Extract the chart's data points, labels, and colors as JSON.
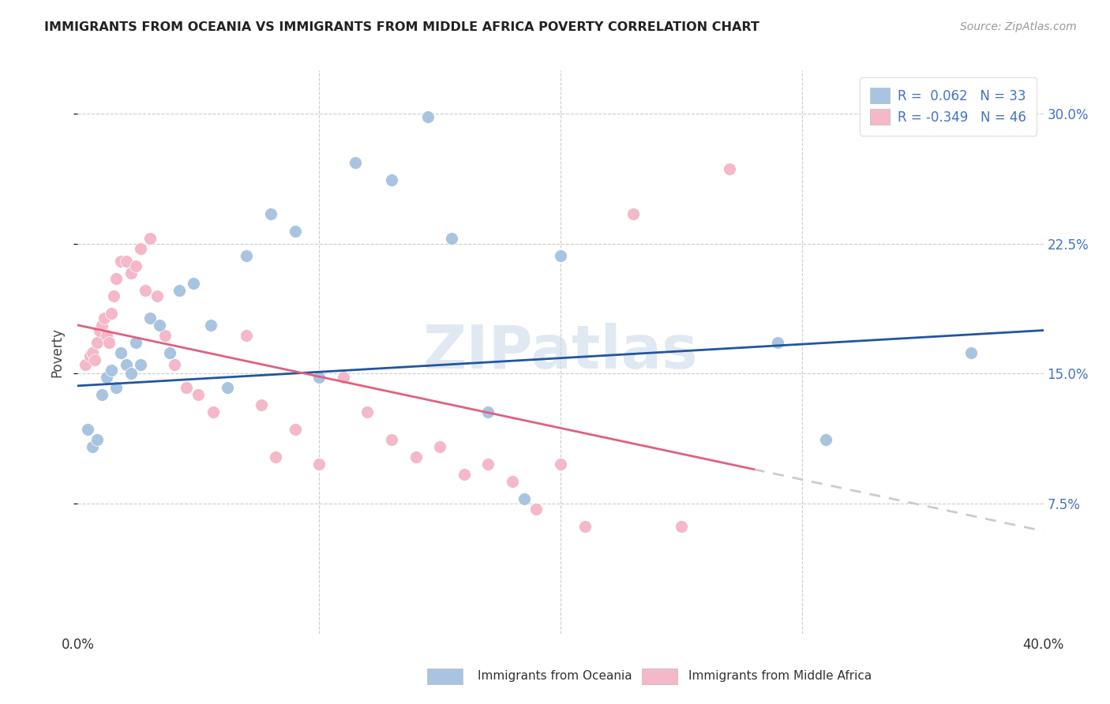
{
  "title": "IMMIGRANTS FROM OCEANIA VS IMMIGRANTS FROM MIDDLE AFRICA POVERTY CORRELATION CHART",
  "source": "Source: ZipAtlas.com",
  "ylabel": "Poverty",
  "ytick_labels": [
    "7.5%",
    "15.0%",
    "22.5%",
    "30.0%"
  ],
  "ytick_values": [
    0.075,
    0.15,
    0.225,
    0.3
  ],
  "xlim": [
    0.0,
    0.4
  ],
  "ylim": [
    0.0,
    0.325
  ],
  "legend_r1": "R =  0.062",
  "legend_n1": "N = 33",
  "legend_r2": "R = -0.349",
  "legend_n2": "N = 46",
  "color_oceania": "#a8c4e0",
  "color_middle_africa": "#f4b8c8",
  "color_line_oceania": "#2255a0",
  "color_line_middle_africa": "#e06080",
  "color_trendline_ext": "#cccccc",
  "label_oceania": "Immigrants from Oceania",
  "label_middle_africa": "Immigrants from Middle Africa",
  "watermark": "ZIPatlas",
  "oceania_x": [
    0.004,
    0.006,
    0.008,
    0.01,
    0.012,
    0.014,
    0.016,
    0.018,
    0.02,
    0.022,
    0.024,
    0.026,
    0.03,
    0.034,
    0.038,
    0.042,
    0.048,
    0.055,
    0.062,
    0.07,
    0.08,
    0.09,
    0.1,
    0.115,
    0.13,
    0.145,
    0.155,
    0.17,
    0.185,
    0.2,
    0.29,
    0.31,
    0.37
  ],
  "oceania_y": [
    0.118,
    0.108,
    0.112,
    0.138,
    0.148,
    0.152,
    0.142,
    0.162,
    0.155,
    0.15,
    0.168,
    0.155,
    0.182,
    0.178,
    0.162,
    0.198,
    0.202,
    0.178,
    0.142,
    0.218,
    0.242,
    0.232,
    0.148,
    0.272,
    0.262,
    0.298,
    0.228,
    0.128,
    0.078,
    0.218,
    0.168,
    0.112,
    0.162
  ],
  "middle_africa_x": [
    0.003,
    0.005,
    0.006,
    0.007,
    0.008,
    0.009,
    0.01,
    0.011,
    0.012,
    0.013,
    0.014,
    0.015,
    0.016,
    0.018,
    0.02,
    0.022,
    0.024,
    0.026,
    0.028,
    0.03,
    0.033,
    0.036,
    0.04,
    0.045,
    0.05,
    0.056,
    0.062,
    0.07,
    0.076,
    0.082,
    0.09,
    0.1,
    0.11,
    0.12,
    0.13,
    0.14,
    0.15,
    0.16,
    0.17,
    0.18,
    0.19,
    0.2,
    0.21,
    0.23,
    0.25,
    0.27
  ],
  "middle_africa_y": [
    0.155,
    0.16,
    0.162,
    0.158,
    0.168,
    0.175,
    0.178,
    0.182,
    0.172,
    0.168,
    0.185,
    0.195,
    0.205,
    0.215,
    0.215,
    0.208,
    0.212,
    0.222,
    0.198,
    0.228,
    0.195,
    0.172,
    0.155,
    0.142,
    0.138,
    0.128,
    0.142,
    0.172,
    0.132,
    0.102,
    0.118,
    0.098,
    0.148,
    0.128,
    0.112,
    0.102,
    0.108,
    0.092,
    0.098,
    0.088,
    0.072,
    0.098,
    0.062,
    0.242,
    0.062,
    0.268
  ]
}
